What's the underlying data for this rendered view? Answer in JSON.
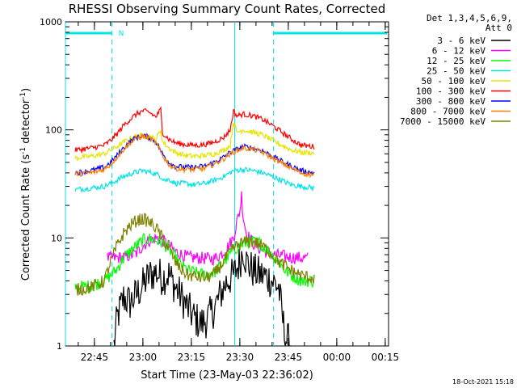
{
  "chart_data": {
    "type": "line",
    "title": "RHESSI Observing Summary Count Rates, Corrected",
    "xlabel": "Start Time (23-May-03 22:36:02)",
    "ylabel_main": "Corrected Count Rate (s",
    "ylabel_sup1": "-1",
    "ylabel_mid": " detector",
    "ylabel_sup2": "-1",
    "ylabel_end": ")",
    "yscale": "log",
    "ylim": [
      1,
      1000
    ],
    "xlim_minutes": [
      0,
      100
    ],
    "x_ticks": [
      "22:45",
      "23:00",
      "23:15",
      "23:30",
      "23:45",
      "00:00",
      "00:15"
    ],
    "y_ticks": [
      "1",
      "10",
      "100",
      "1000"
    ],
    "legend_header": [
      "Det 1,3,4,5,6,9,",
      "Att 0"
    ],
    "legend_placement": "right",
    "annotation_flag": "N",
    "timestamp": "18-Oct-2021 15:18",
    "flag_colors": {
      "cyan": "#00e5e5"
    },
    "series": [
      {
        "name": "3 - 6 keV",
        "color": "#000000",
        "points": [
          [
            15,
            1
          ],
          [
            16,
            1.8
          ],
          [
            18,
            2.8
          ],
          [
            20,
            2.5
          ],
          [
            23,
            3.3
          ],
          [
            26,
            4.5
          ],
          [
            28,
            4.8
          ],
          [
            30,
            4.3
          ],
          [
            32,
            4.6
          ],
          [
            34,
            3.5
          ],
          [
            36,
            2.8
          ],
          [
            38,
            2.2
          ],
          [
            40,
            1.8
          ],
          [
            42,
            1.6
          ],
          [
            44,
            1.8
          ],
          [
            46,
            2.2
          ],
          [
            48,
            3
          ],
          [
            50,
            4
          ],
          [
            52,
            4.5
          ],
          [
            54,
            6
          ],
          [
            55,
            8
          ],
          [
            56,
            6
          ],
          [
            58,
            5
          ],
          [
            60,
            4.6
          ],
          [
            62,
            4.4
          ],
          [
            64,
            4
          ],
          [
            66,
            3.5
          ],
          [
            67,
            2
          ],
          [
            68,
            1.2
          ],
          [
            70,
            1
          ]
        ]
      },
      {
        "name": "6 - 12 keV",
        "color": "#ff00ff",
        "points": [
          [
            13,
            6.5
          ],
          [
            18,
            6.6
          ],
          [
            22,
            7.2
          ],
          [
            24,
            8.5
          ],
          [
            26,
            9.5
          ],
          [
            28,
            10
          ],
          [
            30,
            9.5
          ],
          [
            32,
            8.5
          ],
          [
            34,
            7.5
          ],
          [
            36,
            7
          ],
          [
            38,
            6.6
          ],
          [
            42,
            6.5
          ],
          [
            46,
            6.4
          ],
          [
            48,
            7
          ],
          [
            50,
            8
          ],
          [
            52,
            10
          ],
          [
            53,
            14
          ],
          [
            54,
            18
          ],
          [
            54.5,
            25
          ],
          [
            55,
            16
          ],
          [
            56,
            11
          ],
          [
            58,
            9
          ],
          [
            60,
            8
          ],
          [
            62,
            7.5
          ],
          [
            64,
            7
          ],
          [
            67,
            6.8
          ],
          [
            70,
            6.6
          ],
          [
            75,
            6.5
          ]
        ]
      },
      {
        "name": "12 - 25 keV",
        "color": "#00ff00",
        "points": [
          [
            3,
            3.5
          ],
          [
            8,
            3.6
          ],
          [
            12,
            4
          ],
          [
            14,
            4.5
          ],
          [
            16,
            5.2
          ],
          [
            18,
            6.5
          ],
          [
            20,
            7.5
          ],
          [
            22,
            8.5
          ],
          [
            24,
            9.5
          ],
          [
            26,
            9.8
          ],
          [
            28,
            9.5
          ],
          [
            30,
            9
          ],
          [
            32,
            8
          ],
          [
            34,
            6.5
          ],
          [
            36,
            5.5
          ],
          [
            38,
            5
          ],
          [
            40,
            4.8
          ],
          [
            42,
            4.6
          ],
          [
            44,
            4.6
          ],
          [
            46,
            4.8
          ],
          [
            48,
            5.5
          ],
          [
            50,
            6.5
          ],
          [
            52,
            7.8
          ],
          [
            54,
            8.5
          ],
          [
            56,
            9
          ],
          [
            58,
            9.2
          ],
          [
            60,
            9
          ],
          [
            62,
            8
          ],
          [
            64,
            7
          ],
          [
            66,
            6
          ],
          [
            68,
            5
          ],
          [
            70,
            4.5
          ],
          [
            73,
            4
          ],
          [
            77,
            4
          ]
        ]
      },
      {
        "name": "25 - 50 keV",
        "color": "#00e5e5",
        "points": [
          [
            3,
            28
          ],
          [
            8,
            29
          ],
          [
            12,
            30
          ],
          [
            15,
            33
          ],
          [
            18,
            37
          ],
          [
            21,
            40
          ],
          [
            24,
            42
          ],
          [
            27,
            40
          ],
          [
            29,
            38
          ],
          [
            30,
            36
          ],
          [
            31,
            34
          ],
          [
            32,
            35
          ],
          [
            34,
            32
          ],
          [
            37,
            32
          ],
          [
            40,
            31
          ],
          [
            43,
            32
          ],
          [
            46,
            34
          ],
          [
            49,
            37
          ],
          [
            52,
            42
          ],
          [
            55,
            43
          ],
          [
            58,
            42
          ],
          [
            61,
            40
          ],
          [
            64,
            37
          ],
          [
            67,
            34
          ],
          [
            70,
            31
          ],
          [
            73,
            30
          ],
          [
            77,
            29
          ]
        ]
      },
      {
        "name": "50 - 100 keV",
        "color": "#e5e500",
        "points": [
          [
            3,
            55
          ],
          [
            8,
            57
          ],
          [
            12,
            60
          ],
          [
            14,
            65
          ],
          [
            16,
            70
          ],
          [
            18,
            77
          ],
          [
            20,
            83
          ],
          [
            22,
            87
          ],
          [
            24,
            89
          ],
          [
            26,
            87
          ],
          [
            28,
            82
          ],
          [
            29.5,
            100
          ],
          [
            30,
            78
          ],
          [
            32,
            68
          ],
          [
            34,
            62
          ],
          [
            37,
            58
          ],
          [
            40,
            57
          ],
          [
            43,
            58
          ],
          [
            46,
            60
          ],
          [
            49,
            65
          ],
          [
            51,
            72
          ],
          [
            52,
            120
          ],
          [
            53,
            95
          ],
          [
            55,
            100
          ],
          [
            58,
            95
          ],
          [
            61,
            90
          ],
          [
            64,
            80
          ],
          [
            67,
            72
          ],
          [
            70,
            65
          ],
          [
            73,
            62
          ],
          [
            77,
            61
          ]
        ]
      },
      {
        "name": "100 - 300 keV",
        "color": "#ff0000",
        "points": [
          [
            3,
            65
          ],
          [
            8,
            68
          ],
          [
            12,
            72
          ],
          [
            14,
            80
          ],
          [
            16,
            92
          ],
          [
            18,
            110
          ],
          [
            20,
            125
          ],
          [
            22,
            140
          ],
          [
            24,
            150
          ],
          [
            26,
            145
          ],
          [
            28,
            132
          ],
          [
            29.5,
            155
          ],
          [
            30,
            95
          ],
          [
            32,
            82
          ],
          [
            34,
            76
          ],
          [
            37,
            73
          ],
          [
            40,
            72
          ],
          [
            43,
            73
          ],
          [
            46,
            77
          ],
          [
            49,
            85
          ],
          [
            51,
            100
          ],
          [
            52,
            150
          ],
          [
            53,
            135
          ],
          [
            55,
            140
          ],
          [
            58,
            135
          ],
          [
            61,
            125
          ],
          [
            64,
            110
          ],
          [
            67,
            95
          ],
          [
            70,
            82
          ],
          [
            73,
            72
          ],
          [
            77,
            70
          ]
        ]
      },
      {
        "name": "300 - 800 keV",
        "color": "#0000ff",
        "points": [
          [
            3,
            40
          ],
          [
            8,
            42
          ],
          [
            12,
            45
          ],
          [
            14,
            50
          ],
          [
            16,
            58
          ],
          [
            18,
            68
          ],
          [
            20,
            78
          ],
          [
            22,
            85
          ],
          [
            24,
            88
          ],
          [
            26,
            85
          ],
          [
            28,
            78
          ],
          [
            30,
            60
          ],
          [
            32,
            50
          ],
          [
            34,
            46
          ],
          [
            37,
            45
          ],
          [
            40,
            45
          ],
          [
            43,
            46
          ],
          [
            46,
            50
          ],
          [
            49,
            56
          ],
          [
            51,
            62
          ],
          [
            53,
            66
          ],
          [
            55,
            70
          ],
          [
            58,
            68
          ],
          [
            61,
            64
          ],
          [
            64,
            57
          ],
          [
            67,
            51
          ],
          [
            70,
            46
          ],
          [
            73,
            42
          ],
          [
            77,
            40
          ]
        ]
      },
      {
        "name": "800 - 7000 keV",
        "color": "#ff8000",
        "points": [
          [
            3,
            39
          ],
          [
            8,
            40
          ],
          [
            12,
            43
          ],
          [
            14,
            48
          ],
          [
            16,
            56
          ],
          [
            18,
            66
          ],
          [
            20,
            76
          ],
          [
            22,
            84
          ],
          [
            24,
            87
          ],
          [
            26,
            84
          ],
          [
            28,
            76
          ],
          [
            30,
            58
          ],
          [
            32,
            48
          ],
          [
            34,
            44
          ],
          [
            37,
            43
          ],
          [
            40,
            43
          ],
          [
            43,
            44
          ],
          [
            46,
            48
          ],
          [
            49,
            54
          ],
          [
            51,
            60
          ],
          [
            53,
            64
          ],
          [
            55,
            68
          ],
          [
            58,
            66
          ],
          [
            61,
            62
          ],
          [
            64,
            55
          ],
          [
            67,
            49
          ],
          [
            70,
            44
          ],
          [
            73,
            40
          ],
          [
            77,
            38
          ]
        ]
      },
      {
        "name": "7000 - 15000 keV",
        "color": "#808000",
        "points": [
          [
            3,
            3.3
          ],
          [
            8,
            3.5
          ],
          [
            12,
            4
          ],
          [
            14,
            6
          ],
          [
            16,
            8.5
          ],
          [
            18,
            11
          ],
          [
            20,
            13
          ],
          [
            22,
            14.5
          ],
          [
            24,
            15
          ],
          [
            26,
            14
          ],
          [
            28,
            12.5
          ],
          [
            30,
            10
          ],
          [
            32,
            8
          ],
          [
            34,
            6
          ],
          [
            36,
            5
          ],
          [
            38,
            4.5
          ],
          [
            40,
            4.4
          ],
          [
            42,
            4.3
          ],
          [
            44,
            4.3
          ],
          [
            46,
            4.6
          ],
          [
            48,
            5.5
          ],
          [
            50,
            6.8
          ],
          [
            52,
            8
          ],
          [
            54,
            8.8
          ],
          [
            56,
            9.3
          ],
          [
            58,
            9.2
          ],
          [
            60,
            8.8
          ],
          [
            62,
            8
          ],
          [
            64,
            7
          ],
          [
            66,
            6
          ],
          [
            68,
            5.5
          ],
          [
            70,
            5
          ],
          [
            73,
            4.5
          ],
          [
            77,
            4.2
          ]
        ]
      }
    ],
    "vertical_lines_minutes": {
      "dashed": [
        14.4,
        64.4
      ],
      "solid": [
        0,
        52.4
      ]
    }
  }
}
